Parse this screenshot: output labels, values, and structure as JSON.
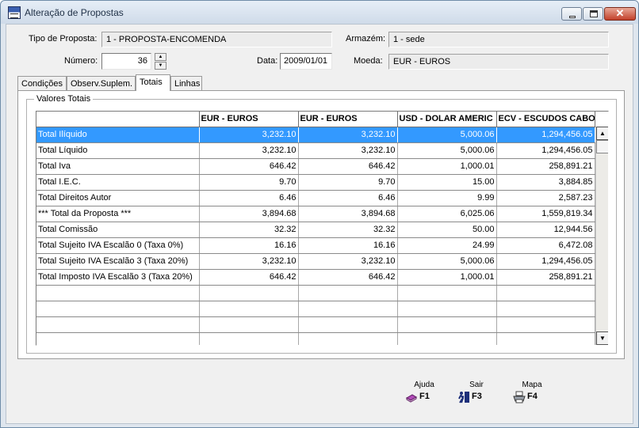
{
  "window": {
    "title": "Alteração de Propostas"
  },
  "header": {
    "tipo_label": "Tipo de Proposta:",
    "tipo_value": "1 - PROPOSTA-ENCOMENDA",
    "armazem_label": "Armazém:",
    "armazem_value": "1 - sede",
    "numero_label": "Número:",
    "numero_value": "36",
    "data_label": "Data:",
    "data_value": "2009/01/01",
    "moeda_label": "Moeda:",
    "moeda_value": "EUR - EUROS"
  },
  "tabs": [
    "Condições",
    "Observ.Suplem.",
    "Totais",
    "Linhas"
  ],
  "active_tab": "Totais",
  "group": {
    "title": "Valores Totais"
  },
  "grid": {
    "columns": [
      "",
      "EUR - EUROS",
      "EUR - EUROS",
      "USD - DOLAR AMERIC",
      "ECV - ESCUDOS CABO"
    ],
    "rows": [
      [
        "Total Ilíquido",
        "3,232.10",
        "3,232.10",
        "5,000.06",
        "1,294,456.05"
      ],
      [
        "Total Líquido",
        "3,232.10",
        "3,232.10",
        "5,000.06",
        "1,294,456.05"
      ],
      [
        "Total Iva",
        "646.42",
        "646.42",
        "1,000.01",
        "258,891.21"
      ],
      [
        "Total I.E.C.",
        "9.70",
        "9.70",
        "15.00",
        "3,884.85"
      ],
      [
        "Total Direitos Autor",
        "6.46",
        "6.46",
        "9.99",
        "2,587.23"
      ],
      [
        "*** Total da Proposta   ***",
        "3,894.68",
        "3,894.68",
        "6,025.06",
        "1,559,819.34"
      ],
      [
        "Total Comissão",
        "32.32",
        "32.32",
        "50.00",
        "12,944.56"
      ],
      [
        "Total Sujeito IVA Escalão 0 (Taxa  0%)",
        "16.16",
        "16.16",
        "24.99",
        "6,472.08"
      ],
      [
        "Total Sujeito IVA Escalão 3 (Taxa 20%)",
        "3,232.10",
        "3,232.10",
        "5,000.06",
        "1,294,456.05"
      ],
      [
        "Total Imposto IVA Escalão 3 (Taxa 20%)",
        "646.42",
        "646.42",
        "1,000.01",
        "258,891.21"
      ],
      [
        "",
        "",
        "",
        "",
        ""
      ],
      [
        "",
        "",
        "",
        "",
        ""
      ],
      [
        "",
        "",
        "",
        "",
        ""
      ],
      [
        "",
        "",
        "",
        "",
        ""
      ]
    ]
  },
  "footer": {
    "ajuda_label": "Ajuda",
    "ajuda_key": "F1",
    "ajuda_icon": "help-book-icon",
    "sair_label": "Sair",
    "sair_key": "F3",
    "sair_icon": "exit-door-icon",
    "mapa_label": "Mapa",
    "mapa_key": "F4",
    "mapa_icon": "printer-icon"
  },
  "colors": {
    "selection": "#3399ff",
    "titlebar": "#dfe6ee"
  }
}
